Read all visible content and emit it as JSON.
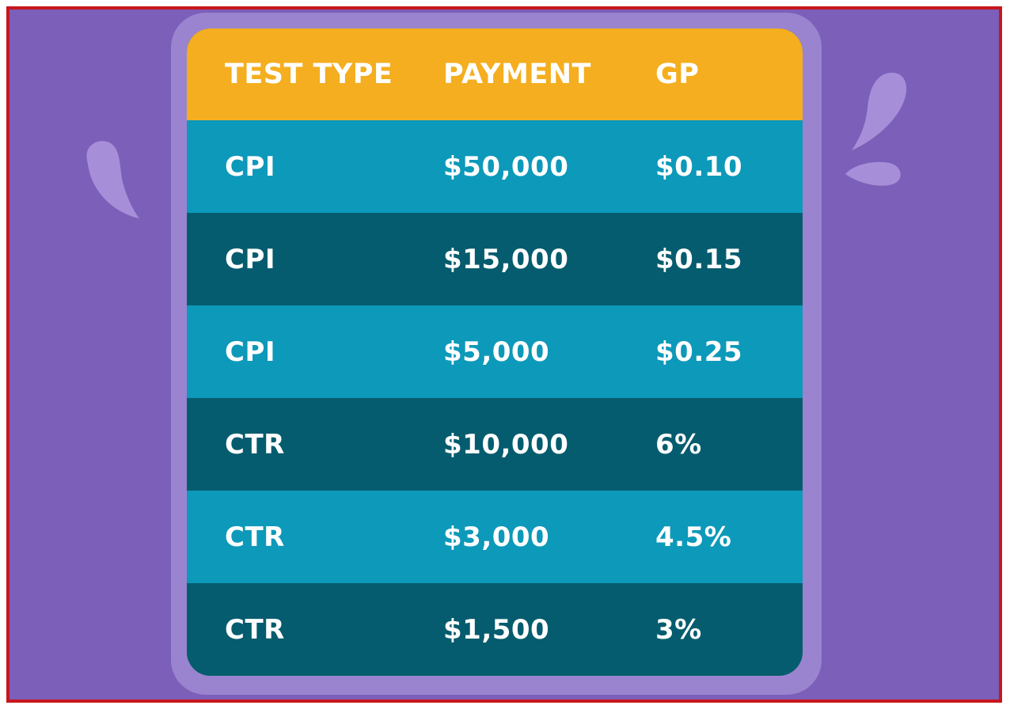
{
  "table": {
    "headers": [
      "TEST TYPE",
      "PAYMENT",
      "GP"
    ],
    "rows": [
      [
        "CPI",
        "$50,000",
        "$0.10"
      ],
      [
        "CPI",
        "$15,000",
        "$0.15"
      ],
      [
        "CPI",
        "$5,000",
        "$0.25"
      ],
      [
        "CTR",
        "$10,000",
        "6%"
      ],
      [
        "CTR",
        "$3,000",
        "4.5%"
      ],
      [
        "CTR",
        "$1,500",
        "3%"
      ]
    ]
  },
  "colors": {
    "background": "#7b5fb9",
    "card": "#9a84cf",
    "header": "#f4ae1f",
    "row_light": "#0d99b9",
    "row_dark": "#055c6e",
    "border": "#c8161d"
  },
  "decorations": {
    "left_icon": "droplet-icon",
    "right_icons": [
      "splash-drop-icon",
      "splash-dot-icon"
    ]
  }
}
